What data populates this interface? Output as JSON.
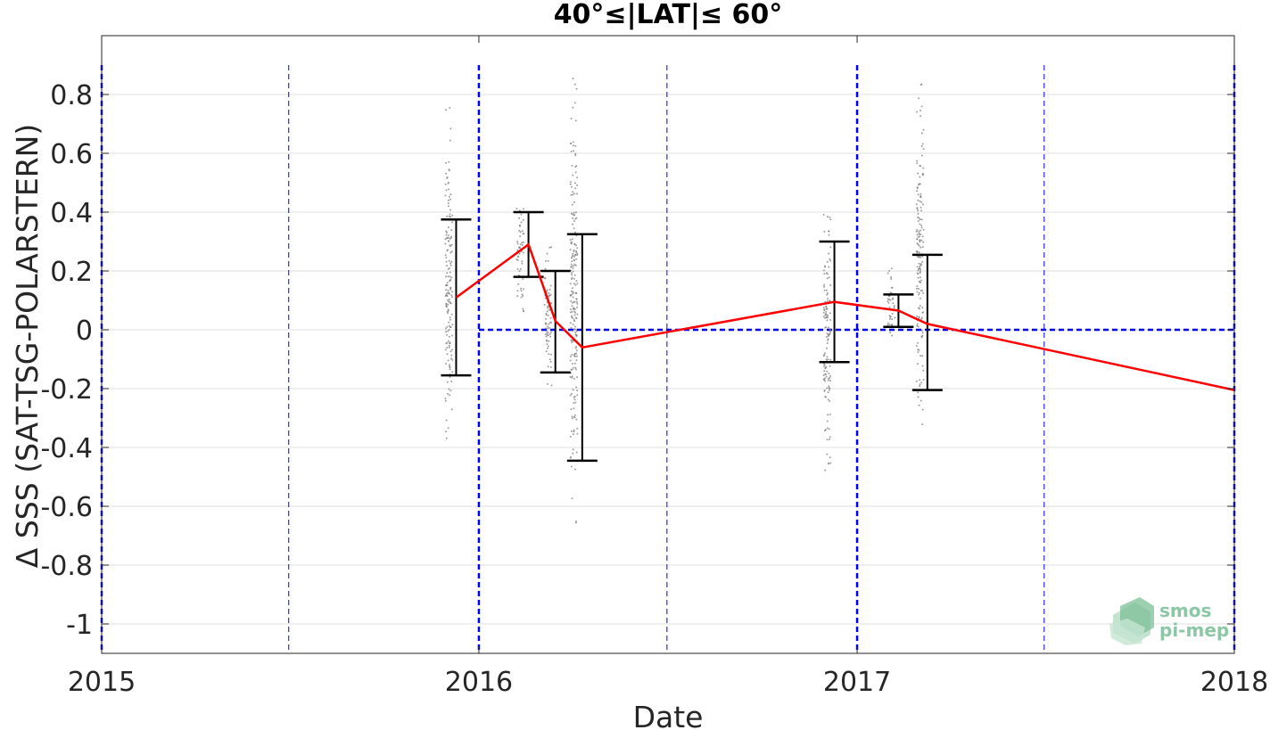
{
  "chart_data": {
    "type": "scatter",
    "title": "40°≤|LAT|≤ 60°",
    "xlabel": "Date",
    "ylabel": "Δ SSS (SAT-TSG-POLARSTERN)",
    "xlim": [
      "2015-01-01",
      "2018-01-01"
    ],
    "ylim": [
      -1.1,
      1.0
    ],
    "xticks": [
      {
        "label": "2015",
        "date": "2015-01-01"
      },
      {
        "label": "2016",
        "date": "2016-01-01"
      },
      {
        "label": "2017",
        "date": "2017-01-01"
      },
      {
        "label": "2018",
        "date": "2018-01-01"
      }
    ],
    "yticks": [
      {
        "label": "0.8",
        "value": 0.8
      },
      {
        "label": "0.6",
        "value": 0.6
      },
      {
        "label": "0.4",
        "value": 0.4
      },
      {
        "label": "0.2",
        "value": 0.2
      },
      {
        "label": "0",
        "value": 0
      },
      {
        "label": "-0.2",
        "value": -0.2
      },
      {
        "label": "-0.4",
        "value": -0.4
      },
      {
        "label": "-0.6",
        "value": -0.6
      },
      {
        "label": "-0.8",
        "value": -0.8
      },
      {
        "label": "-1",
        "value": -1
      }
    ],
    "grid": true,
    "year_lines": [
      "2015-01-01",
      "2016-01-01",
      "2017-01-01",
      "2018-01-01"
    ],
    "half_year_lines": [
      "2015-07-01",
      "2016-07-01",
      "2017-07-01"
    ],
    "zero_line": {
      "value": 0,
      "from": "2016-01-01",
      "to": "2018-01-01"
    },
    "series": [
      {
        "kind": "mean_line",
        "color": "#ff0000",
        "points": [
          {
            "date": "2015-12-10",
            "y": 0.11
          },
          {
            "date": "2016-02-18",
            "y": 0.29
          },
          {
            "date": "2016-03-15",
            "y": 0.03
          },
          {
            "date": "2016-04-10",
            "y": -0.06
          },
          {
            "date": "2016-12-10",
            "y": 0.095
          },
          {
            "date": "2017-02-10",
            "y": 0.065
          },
          {
            "date": "2017-03-10",
            "y": 0.02
          },
          {
            "date": "2018-01-01",
            "y": -0.205
          }
        ]
      },
      {
        "kind": "error_bars",
        "color": "#000000",
        "bars": [
          {
            "date": "2015-12-10",
            "low": -0.155,
            "high": 0.375
          },
          {
            "date": "2016-02-18",
            "low": 0.18,
            "high": 0.4
          },
          {
            "date": "2016-03-15",
            "low": -0.145,
            "high": 0.2
          },
          {
            "date": "2016-04-10",
            "low": -0.445,
            "high": 0.325
          },
          {
            "date": "2016-12-10",
            "low": -0.11,
            "high": 0.3
          },
          {
            "date": "2017-02-10",
            "low": 0.01,
            "high": 0.12
          },
          {
            "date": "2017-03-10",
            "low": -0.205,
            "high": 0.255
          }
        ]
      },
      {
        "kind": "scatter",
        "color": "#7f7f7f",
        "clusters": [
          {
            "date": "2015-12-03",
            "low": -0.39,
            "high": 0.78
          },
          {
            "date": "2016-02-10",
            "low": 0.05,
            "high": 0.46
          },
          {
            "date": "2016-03-08",
            "low": -0.2,
            "high": 0.32
          },
          {
            "date": "2016-04-02",
            "low": -0.67,
            "high": 0.9
          },
          {
            "date": "2016-12-03",
            "low": -0.5,
            "high": 0.44
          },
          {
            "date": "2017-02-03",
            "low": -0.05,
            "high": 0.21
          },
          {
            "date": "2017-03-03",
            "low": -0.33,
            "high": 0.84
          }
        ]
      }
    ],
    "colors": {
      "year_line": "#0000ff",
      "half_year_line": "#0000ff",
      "grid": "#dfdfdf"
    }
  },
  "logo": {
    "line1": "smos",
    "line2": "pi-mep"
  }
}
